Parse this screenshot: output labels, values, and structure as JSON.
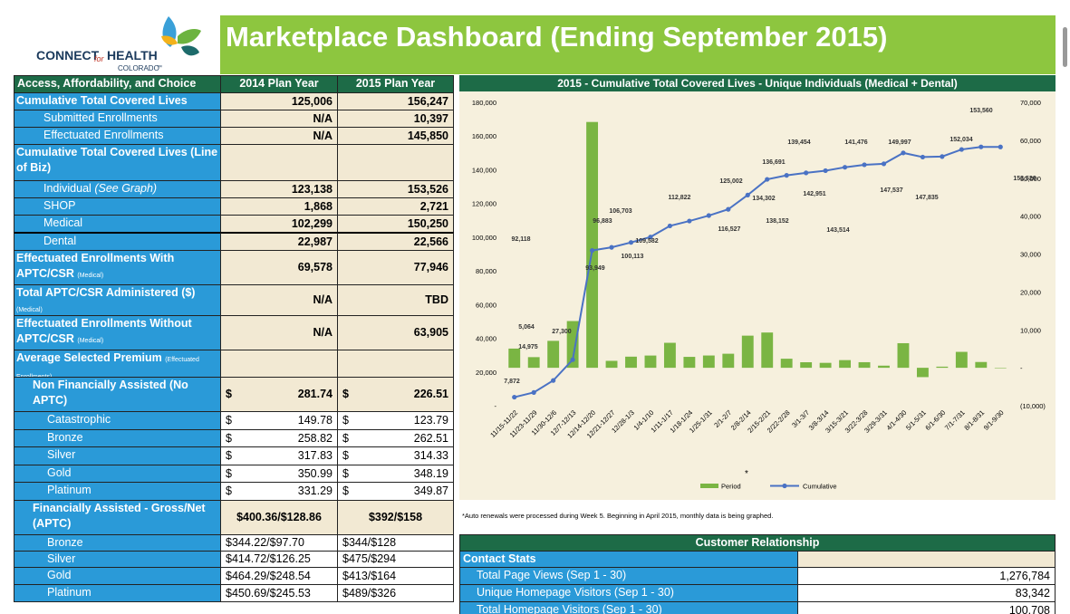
{
  "header": {
    "logo": {
      "word1": "CONNECT",
      "word2": "for",
      "word3": "HEALTH",
      "word4": "COLORADO",
      "tm": "™"
    },
    "title": "Marketplace Dashboard (Ending September 2015)"
  },
  "table": {
    "columns": [
      "Access, Affordability, and Choice",
      "2014 Plan Year",
      "2015 Plan Year"
    ],
    "rows": [
      {
        "label": "Cumulative Total Covered Lives",
        "values": [
          "125,006",
          "156,247"
        ]
      },
      {
        "label": "Submitted Enrollments",
        "values": [
          "N/A",
          "10,397"
        ]
      },
      {
        "label": "Effectuated Enrollments",
        "values": [
          "N/A",
          "145,850"
        ]
      },
      {
        "label": "Cumulative Total Covered Lives (Line of Biz)"
      },
      {
        "label": "Individual",
        "label_italic": "(See Graph)",
        "values": [
          "123,138",
          "153,526"
        ]
      },
      {
        "label": "SHOP",
        "values": [
          "1,868",
          "2,721"
        ]
      },
      {
        "label": "Medical",
        "values": [
          "102,299",
          "150,250"
        ]
      },
      {
        "label": "Dental",
        "values": [
          "22,987",
          "22,566"
        ]
      },
      {
        "label": "Effectuated Enrollments With APTC/CSR",
        "label_note": "(Medical)",
        "values": [
          "69,578",
          "77,946"
        ]
      },
      {
        "label": "Total APTC/CSR Administered ($)",
        "label_note": "(Medical)",
        "values": [
          "N/A",
          "TBD"
        ]
      },
      {
        "label": "Effectuated Enrollments Without APTC/CSR",
        "label_note": "(Medical)",
        "values": [
          "N/A",
          "63,905"
        ]
      },
      {
        "label": "Average Selected Premium",
        "label_note": "(Effectuated Enrollments)"
      },
      {
        "label": "Non Financially Assisted (No APTC)",
        "values": [
          [
            "$",
            "281.74"
          ],
          [
            "$",
            "226.51"
          ]
        ]
      },
      {
        "label": "Catastrophic",
        "values": [
          [
            "$",
            "149.78"
          ],
          [
            "$",
            "123.79"
          ]
        ]
      },
      {
        "label": "Bronze",
        "values": [
          [
            "$",
            "258.82"
          ],
          [
            "$",
            "262.51"
          ]
        ]
      },
      {
        "label": "Silver",
        "values": [
          [
            "$",
            "317.83"
          ],
          [
            "$",
            "314.33"
          ]
        ]
      },
      {
        "label": "Gold",
        "values": [
          [
            "$",
            "350.99"
          ],
          [
            "$",
            "348.19"
          ]
        ]
      },
      {
        "label": "Platinum",
        "values": [
          [
            "$",
            "331.29"
          ],
          [
            "$",
            "349.87"
          ]
        ]
      },
      {
        "label": "Financially Assisted - Gross/Net (APTC)",
        "values": [
          "$400.36/$128.86",
          "$392/$158"
        ]
      },
      {
        "label": "Bronze",
        "values": [
          "$344.22/$97.70",
          "$344/$128"
        ]
      },
      {
        "label": "Silver",
        "values": [
          "$414.72/$126.25",
          "$475/$294"
        ]
      },
      {
        "label": "Gold",
        "values": [
          "$464.29/$248.54",
          "$413/$164"
        ]
      },
      {
        "label": "Platinum",
        "values": [
          "$450.69/$245.53",
          "$489/$326"
        ]
      }
    ]
  },
  "chart_data": {
    "type": "combo",
    "title": "2015 - Cumulative Total Covered Lives - Unique Individuals (Medical + Dental)",
    "categories": [
      "11/15-11/22",
      "11/23-11/29",
      "11/30-12/6",
      "12/7-12/13",
      "12/14-12/20",
      "12/21-12/27",
      "12/28-1/3",
      "1/4-1/10",
      "1/11-1/17",
      "1/18-1/24",
      "1/25-1/31",
      "2/1-2/7",
      "2/8-2/14",
      "2/15-2/21",
      "2/22-2/28",
      "3/1-3/7",
      "3/8-3/14",
      "3/15-3/21",
      "3/22-3/28",
      "3/29-3/31",
      "4/1-4/30",
      "5/1-5/31",
      "6/1-6/30",
      "7/1-7/31",
      "8/1-8/31",
      "9/1-9/30"
    ],
    "series": [
      {
        "name": "Period",
        "type": "bar",
        "axis": "y2",
        "color": "#7ab543",
        "values": [
          5064,
          2808,
          7103,
          12325,
          64818,
          1831,
          2934,
          3230,
          6590,
          2879,
          3240,
          3705,
          8475,
          9300,
          2389,
          1461,
          1302,
          2022,
          1475,
          563,
          6483,
          -2460,
          298,
          4199,
          1526,
          -34
        ]
      },
      {
        "name": "Cumulative",
        "type": "line",
        "color": "#4a72c4",
        "values": [
          5064,
          7872,
          14975,
          27300,
          92118,
          93949,
          96883,
          100113,
          106703,
          109582,
          112822,
          116527,
          125002,
          134302,
          136691,
          138152,
          139454,
          141476,
          142951,
          143514,
          149997,
          147537,
          147835,
          152034,
          153560,
          153526
        ],
        "value_labels": [
          "5,064",
          "7,872",
          "14,975",
          "27,300",
          "92,118",
          "93,949",
          "96,883",
          "100,113",
          "106,703",
          "109,582",
          "112,822",
          "116,527",
          "125,002",
          "134,302",
          "136,691",
          "138,152",
          "139,454",
          "141,476",
          "142,951",
          "143,514",
          "149,997",
          "147,537",
          "147,835",
          "152,034",
          "153,560",
          "153,526"
        ]
      }
    ],
    "ylim": [
      0,
      180000
    ],
    "yticks": [
      {
        "value": 0,
        "label": "-"
      },
      {
        "value": 20000,
        "label": "20,000"
      },
      {
        "value": 40000,
        "label": "40,000"
      },
      {
        "value": 60000,
        "label": "60,000"
      },
      {
        "value": 80000,
        "label": "80,000"
      },
      {
        "value": 100000,
        "label": "100,000"
      },
      {
        "value": 120000,
        "label": "120,000"
      },
      {
        "value": 140000,
        "label": "140,000"
      },
      {
        "value": 160000,
        "label": "160,000"
      },
      {
        "value": 180000,
        "label": "180,000"
      }
    ],
    "y2lim": [
      -10000,
      70000
    ],
    "y2ticks": [
      {
        "value": -10000,
        "label": "(10,000)"
      },
      {
        "value": 0,
        "label": "-"
      },
      {
        "value": 10000,
        "label": "10,000"
      },
      {
        "value": 20000,
        "label": "20,000"
      },
      {
        "value": 30000,
        "label": "30,000"
      },
      {
        "value": 40000,
        "label": "40,000"
      },
      {
        "value": 50000,
        "label": "50,000"
      },
      {
        "value": 60000,
        "label": "60,000"
      },
      {
        "value": 70000,
        "label": "70,000"
      }
    ],
    "grid": false,
    "legend": "bottom",
    "annotation": "*",
    "note": "*Auto renewals were processed during Week 5.  Beginning in April 2015, monthly data is being graphed."
  },
  "customer_relationship": {
    "title": "Customer Relationship",
    "section": "Contact Stats",
    "rows": [
      [
        "Total Page Views (Sep 1 - 30)",
        "1,276,784"
      ],
      [
        "Unique Homepage Visitors (Sep 1 - 30)",
        "83,342"
      ],
      [
        "Total Homepage Visitors (Sep 1 - 30)",
        "100,708"
      ]
    ]
  }
}
